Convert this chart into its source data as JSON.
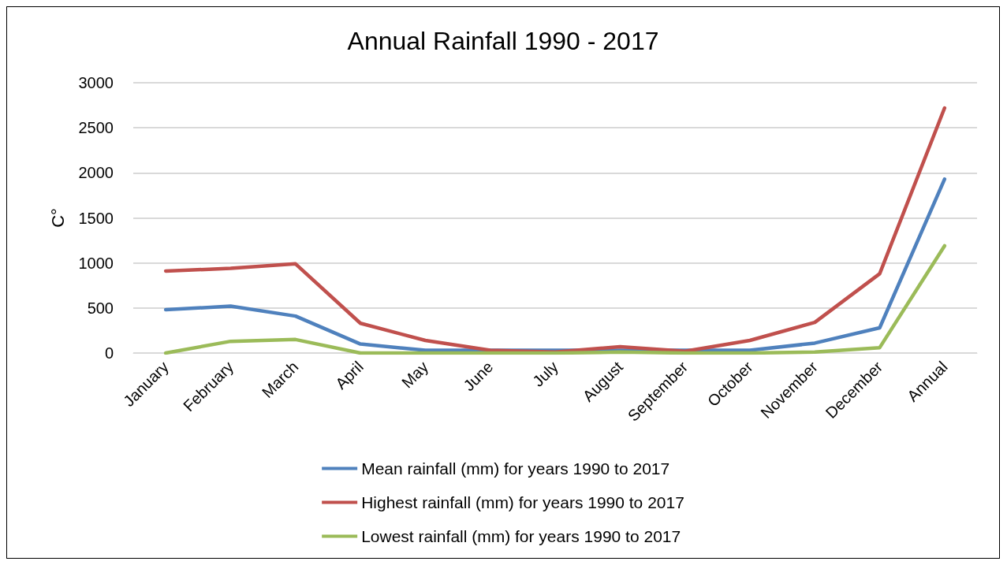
{
  "chart_data": {
    "type": "line",
    "title": "Annual Rainfall 1990 - 2017",
    "ylabel": "C°",
    "categories": [
      "January",
      "February",
      "March",
      "April",
      "May",
      "June",
      "July",
      "August",
      "September",
      "October",
      "November",
      "December",
      "Annual"
    ],
    "series": [
      {
        "name": "Mean rainfall (mm) for years 1990 to 2017",
        "color": "#4f81bd",
        "values": [
          480,
          520,
          410,
          100,
          30,
          null,
          null,
          null,
          null,
          30,
          110,
          280,
          1930
        ]
      },
      {
        "name": "Highest rainfall (mm) for years 1990 to 2017",
        "color": "#c0504d",
        "values": [
          910,
          940,
          990,
          330,
          140,
          30,
          10,
          70,
          20,
          140,
          340,
          880,
          2720
        ]
      },
      {
        "name": "Lowest rainfall (mm) for years 1990 to 2017",
        "color": "#9bbb59",
        "values": [
          0,
          130,
          150,
          0,
          0,
          0,
          0,
          10,
          0,
          0,
          10,
          60,
          1190
        ]
      }
    ],
    "ylim": [
      0,
      3000
    ],
    "yticks": [
      0,
      500,
      1000,
      1500,
      2000,
      2500,
      3000
    ],
    "grid": "y",
    "legend": "bottom",
    "marker": "none",
    "line_style": "solid"
  }
}
